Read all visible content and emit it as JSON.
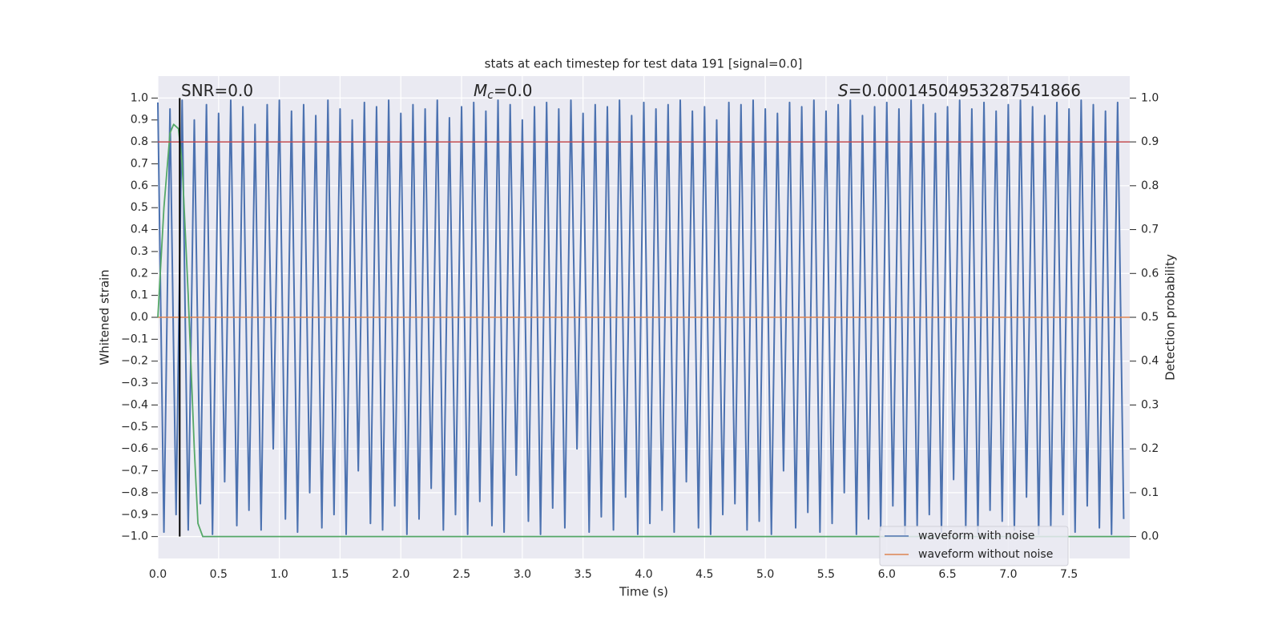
{
  "chart_data": {
    "type": "line",
    "title": "stats at each timestep for test data 191 [signal=0.0]",
    "xlabel": "Time (s)",
    "ylabel": "Whitened strain",
    "y2label": "Detection probability",
    "xlim": [
      0,
      8
    ],
    "ylim": [
      -1.1,
      1.1
    ],
    "y2lim": [
      -0.05,
      1.05
    ],
    "xticks": [
      {
        "value": 0,
        "label": "0.0"
      },
      {
        "value": 0.5,
        "label": "0.5"
      },
      {
        "value": 1,
        "label": "1.0"
      },
      {
        "value": 1.5,
        "label": "1.5"
      },
      {
        "value": 2,
        "label": "2.0"
      },
      {
        "value": 2.5,
        "label": "2.5"
      },
      {
        "value": 3,
        "label": "3.0"
      },
      {
        "value": 3.5,
        "label": "3.5"
      },
      {
        "value": 4,
        "label": "4.0"
      },
      {
        "value": 4.5,
        "label": "4.5"
      },
      {
        "value": 5,
        "label": "5.0"
      },
      {
        "value": 5.5,
        "label": "5.5"
      },
      {
        "value": 6,
        "label": "6.0"
      },
      {
        "value": 6.5,
        "label": "6.5"
      },
      {
        "value": 7,
        "label": "7.0"
      },
      {
        "value": 7.5,
        "label": "7.5"
      }
    ],
    "yticks": [
      {
        "value": -1,
        "label": "−1.0"
      },
      {
        "value": -0.9,
        "label": "−0.9"
      },
      {
        "value": -0.8,
        "label": "−0.8"
      },
      {
        "value": -0.7,
        "label": "−0.7"
      },
      {
        "value": -0.6,
        "label": "−0.6"
      },
      {
        "value": -0.5,
        "label": "−0.5"
      },
      {
        "value": -0.4,
        "label": "−0.4"
      },
      {
        "value": -0.3,
        "label": "−0.3"
      },
      {
        "value": -0.2,
        "label": "−0.2"
      },
      {
        "value": -0.1,
        "label": "−0.1"
      },
      {
        "value": 0,
        "label": "0.0"
      },
      {
        "value": 0.1,
        "label": "0.1"
      },
      {
        "value": 0.2,
        "label": "0.2"
      },
      {
        "value": 0.3,
        "label": "0.3"
      },
      {
        "value": 0.4,
        "label": "0.4"
      },
      {
        "value": 0.5,
        "label": "0.5"
      },
      {
        "value": 0.6,
        "label": "0.6"
      },
      {
        "value": 0.7,
        "label": "0.7"
      },
      {
        "value": 0.8,
        "label": "0.8"
      },
      {
        "value": 0.9,
        "label": "0.9"
      },
      {
        "value": 1,
        "label": "1.0"
      }
    ],
    "y2ticks": [
      {
        "value": 0,
        "label": "0.0"
      },
      {
        "value": 0.1,
        "label": "0.1"
      },
      {
        "value": 0.2,
        "label": "0.2"
      },
      {
        "value": 0.3,
        "label": "0.3"
      },
      {
        "value": 0.4,
        "label": "0.4"
      },
      {
        "value": 0.5,
        "label": "0.5"
      },
      {
        "value": 0.6,
        "label": "0.6"
      },
      {
        "value": 0.7,
        "label": "0.7"
      },
      {
        "value": 0.8,
        "label": "0.8"
      },
      {
        "value": 0.9,
        "label": "0.9"
      },
      {
        "value": 1,
        "label": "1.0"
      }
    ],
    "grid": true,
    "legend": "lower right",
    "series": [
      {
        "name": "waveform with noise",
        "color": "#4c72b0",
        "x": [
          0,
          0.05,
          0.1,
          0.15,
          0.2,
          0.25,
          0.3,
          0.35,
          0.4,
          0.45,
          0.5,
          0.55,
          0.6,
          0.65,
          0.7,
          0.75,
          0.8,
          0.85,
          0.9,
          0.95,
          1,
          1.05,
          1.1,
          1.15,
          1.2,
          1.25,
          1.3,
          1.35,
          1.4,
          1.45,
          1.5,
          1.55,
          1.6,
          1.65,
          1.7,
          1.75,
          1.8,
          1.85,
          1.9,
          1.95,
          2,
          2.05,
          2.1,
          2.15,
          2.2,
          2.25,
          2.3,
          2.35,
          2.4,
          2.45,
          2.5,
          2.55,
          2.6,
          2.65,
          2.7,
          2.75,
          2.8,
          2.85,
          2.9,
          2.95,
          3,
          3.05,
          3.1,
          3.15,
          3.2,
          3.25,
          3.3,
          3.35,
          3.4,
          3.45,
          3.5,
          3.55,
          3.6,
          3.65,
          3.7,
          3.75,
          3.8,
          3.85,
          3.9,
          3.95,
          4,
          4.05,
          4.1,
          4.15,
          4.2,
          4.25,
          4.3,
          4.35,
          4.4,
          4.45,
          4.5,
          4.55,
          4.6,
          4.65,
          4.7,
          4.75,
          4.8,
          4.85,
          4.9,
          4.95,
          5,
          5.05,
          5.1,
          5.15,
          5.2,
          5.25,
          5.3,
          5.35,
          5.4,
          5.45,
          5.5,
          5.55,
          5.6,
          5.65,
          5.7,
          5.75,
          5.8,
          5.85,
          5.9,
          5.95,
          6,
          6.05,
          6.1,
          6.15,
          6.2,
          6.25,
          6.3,
          6.35,
          6.4,
          6.45,
          6.5,
          6.55,
          6.6,
          6.65,
          6.7,
          6.75,
          6.8,
          6.85,
          6.9,
          6.95,
          7,
          7.05,
          7.1,
          7.15,
          7.2,
          7.25,
          7.3,
          7.35,
          7.4,
          7.45,
          7.5,
          7.55,
          7.6,
          7.65,
          7.7,
          7.75,
          7.8,
          7.85,
          7.9,
          7.95
        ],
        "values": [
          0.98,
          -0.98,
          0.95,
          -0.9,
          0.99,
          -0.97,
          0.9,
          -0.85,
          0.97,
          -0.99,
          0.93,
          -0.75,
          0.99,
          -0.95,
          0.96,
          -0.88,
          0.88,
          -0.97,
          0.97,
          -0.6,
          0.99,
          -0.92,
          0.94,
          -0.98,
          0.97,
          -0.8,
          0.92,
          -0.96,
          0.99,
          -0.9,
          0.95,
          -0.99,
          0.9,
          -0.7,
          0.98,
          -0.94,
          0.96,
          -0.97,
          0.99,
          -0.86,
          0.93,
          -0.99,
          0.97,
          -0.92,
          0.95,
          -0.78,
          0.99,
          -0.97,
          0.91,
          -0.9,
          0.96,
          -0.99,
          0.98,
          -0.84,
          0.94,
          -0.95,
          0.99,
          -0.98,
          0.97,
          -0.72,
          0.9,
          -0.93,
          0.96,
          -0.99,
          0.98,
          -0.87,
          0.95,
          -0.96,
          0.99,
          -0.6,
          0.93,
          -0.98,
          0.97,
          -0.91,
          0.96,
          -0.97,
          0.99,
          -0.82,
          0.92,
          -0.99,
          0.98,
          -0.94,
          0.95,
          -0.88,
          0.97,
          -0.98,
          0.99,
          -0.75,
          0.94,
          -0.96,
          0.96,
          -0.99,
          0.9,
          -0.9,
          0.98,
          -0.85,
          0.97,
          -0.97,
          0.99,
          -0.93,
          0.95,
          -0.99,
          0.93,
          -0.7,
          0.98,
          -0.96,
          0.96,
          -0.89,
          0.99,
          -0.98,
          0.94,
          -0.94,
          0.97,
          -0.8,
          0.99,
          -0.99,
          0.92,
          -0.92,
          0.96,
          -0.97,
          0.98,
          -0.86,
          0.95,
          -0.99,
          0.99,
          -0.95,
          0.97,
          -0.9,
          0.93,
          -0.98,
          0.96,
          -0.74,
          0.99,
          -0.96,
          0.95,
          -0.99,
          0.98,
          -0.88,
          0.94,
          -0.93,
          0.97,
          -0.97,
          0.99,
          -0.82,
          0.96,
          -0.99,
          0.92,
          -0.95,
          0.98,
          -0.9,
          0.95,
          -0.98,
          0.99,
          -0.86,
          0.97,
          -0.96,
          0.94,
          -0.99,
          0.98,
          -0.92
        ]
      },
      {
        "name": "waveform without noise",
        "color": "#dd8452",
        "x": [
          0,
          8
        ],
        "values": [
          0,
          0
        ]
      }
    ],
    "probability": {
      "color": "#55a868",
      "axis": "y2",
      "x": [
        0,
        0.05,
        0.1,
        0.13,
        0.17,
        0.2,
        0.25,
        0.3,
        0.33,
        0.37,
        8
      ],
      "values": [
        0.5,
        0.75,
        0.92,
        0.94,
        0.93,
        0.85,
        0.55,
        0.2,
        0.03,
        0,
        0
      ]
    },
    "threshold": 0.9,
    "threshold_color": "#c44e52",
    "marker_x": 0.18,
    "marker_color": "#000000",
    "annotations": [
      {
        "text": "SNR=0.0"
      },
      {
        "symbol": "M",
        "subscript": "c",
        "text": "=0.0"
      },
      {
        "symbol": "S",
        "text": "=0.00014504953287541866"
      }
    ]
  }
}
